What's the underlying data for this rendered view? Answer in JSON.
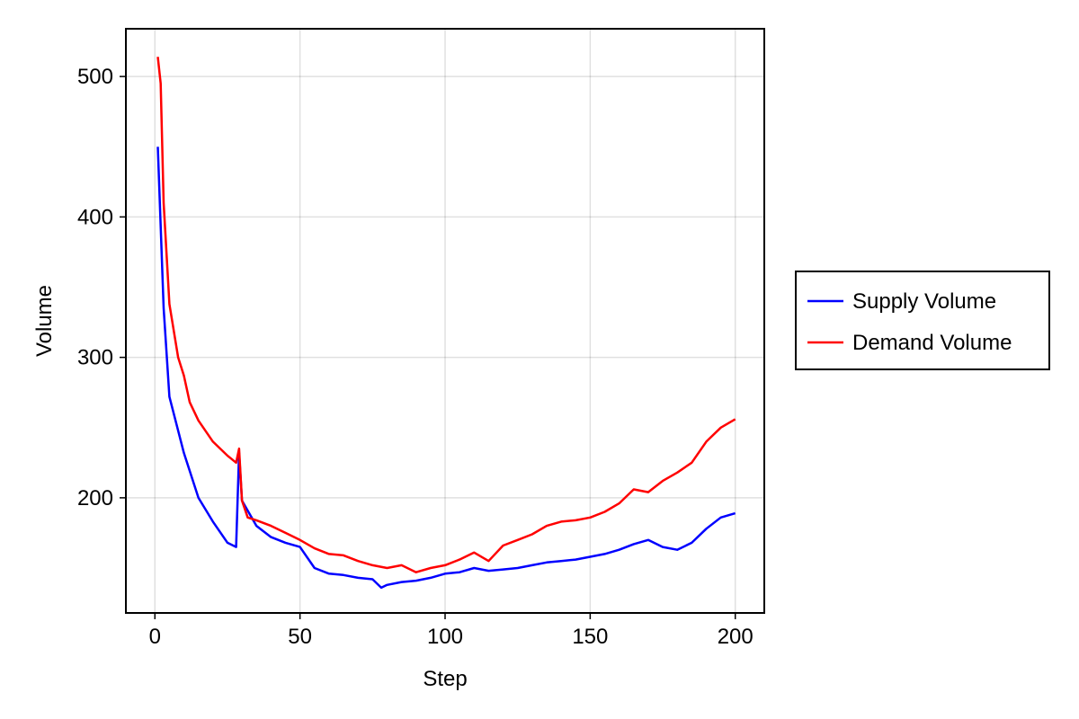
{
  "chart_data": {
    "type": "line",
    "title": "",
    "xlabel": "Step",
    "ylabel": "Volume",
    "xlim": [
      -10,
      210
    ],
    "ylim": [
      118,
      534
    ],
    "xticks": [
      0,
      50,
      100,
      150,
      200
    ],
    "yticks": [
      200,
      300,
      400,
      500
    ],
    "grid": true,
    "legend_placement": "right",
    "series": [
      {
        "name": "Supply Volume",
        "color": "#0000ff",
        "x": [
          1,
          3,
          5,
          10,
          15,
          20,
          25,
          28,
          29,
          30,
          35,
          40,
          45,
          50,
          55,
          60,
          65,
          70,
          75,
          78,
          80,
          85,
          90,
          95,
          100,
          105,
          110,
          115,
          120,
          125,
          130,
          135,
          140,
          145,
          150,
          155,
          160,
          165,
          170,
          175,
          180,
          185,
          190,
          195,
          200
        ],
        "y": [
          450,
          335,
          272,
          232,
          200,
          183,
          168,
          165,
          232,
          198,
          180,
          172,
          168,
          165,
          150,
          146,
          145,
          143,
          142,
          136,
          138,
          140,
          141,
          143,
          146,
          147,
          150,
          148,
          149,
          150,
          152,
          154,
          155,
          156,
          158,
          160,
          163,
          167,
          170,
          165,
          163,
          168,
          178,
          186,
          189
        ]
      },
      {
        "name": "Demand Volume",
        "color": "#ff0000",
        "x": [
          1,
          2,
          3,
          5,
          8,
          10,
          12,
          15,
          20,
          25,
          28,
          29,
          30,
          32,
          35,
          40,
          45,
          50,
          55,
          60,
          65,
          70,
          75,
          80,
          85,
          90,
          95,
          100,
          105,
          110,
          115,
          120,
          125,
          130,
          135,
          140,
          145,
          150,
          155,
          160,
          165,
          170,
          175,
          180,
          185,
          190,
          195,
          200
        ],
        "y": [
          514,
          495,
          410,
          338,
          300,
          287,
          268,
          255,
          240,
          230,
          225,
          235,
          198,
          186,
          184,
          180,
          175,
          170,
          164,
          160,
          159,
          155,
          152,
          150,
          152,
          147,
          150,
          152,
          156,
          161,
          155,
          166,
          170,
          174,
          180,
          183,
          184,
          186,
          190,
          196,
          206,
          204,
          212,
          218,
          225,
          240,
          250,
          256
        ]
      }
    ]
  }
}
